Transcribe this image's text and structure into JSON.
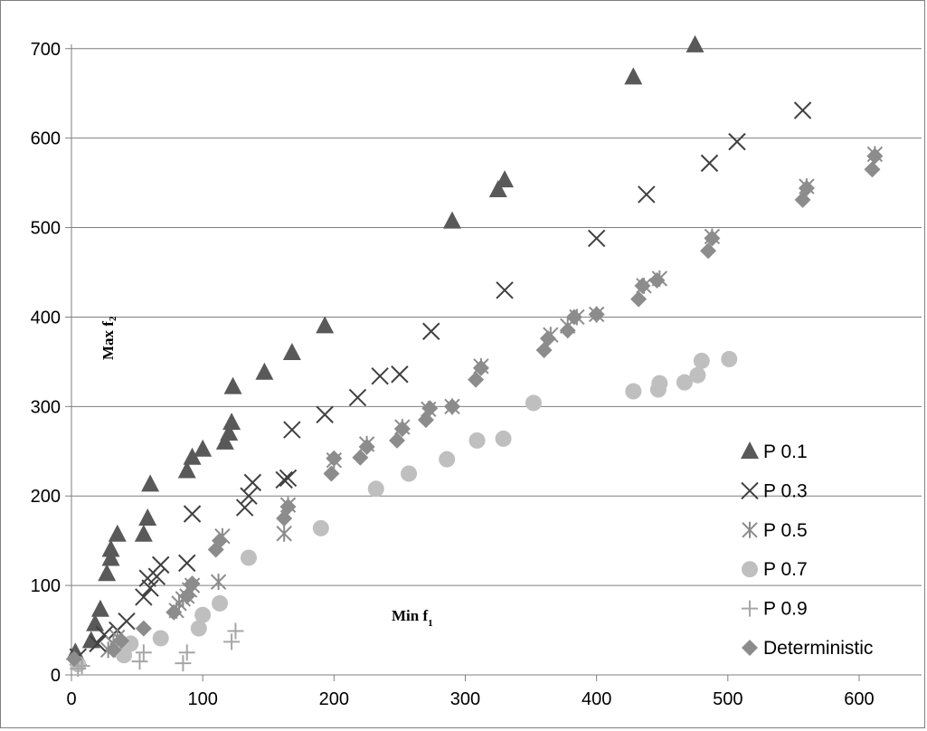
{
  "chart_data": {
    "type": "scatter",
    "xlabel": "Min f",
    "xlabel_sub": "1",
    "ylabel": "Max f",
    "ylabel_sub": "2",
    "xlim": [
      0,
      620
    ],
    "ylim": [
      0,
      720
    ],
    "xticks": [
      "0",
      "100",
      "200",
      "300",
      "400",
      "500",
      "600"
    ],
    "yticks": [
      "0",
      "100",
      "200",
      "300",
      "400",
      "500",
      "600",
      "700"
    ],
    "grid": "horizontal",
    "legend_position": "right",
    "series": [
      {
        "name": "P 0.1",
        "marker": "triangle",
        "color": "#595959",
        "points": [
          [
            3,
            25
          ],
          [
            15,
            38
          ],
          [
            18,
            57
          ],
          [
            22,
            73
          ],
          [
            27,
            113
          ],
          [
            30,
            130
          ],
          [
            30,
            140
          ],
          [
            35,
            157
          ],
          [
            55,
            157
          ],
          [
            58,
            175
          ],
          [
            60,
            213
          ],
          [
            88,
            228
          ],
          [
            92,
            243
          ],
          [
            100,
            252
          ],
          [
            117,
            260
          ],
          [
            120,
            270
          ],
          [
            122,
            282
          ],
          [
            123,
            322
          ],
          [
            147,
            338
          ],
          [
            168,
            360
          ],
          [
            193,
            390
          ],
          [
            290,
            507
          ],
          [
            325,
            542
          ],
          [
            330,
            553
          ],
          [
            428,
            668
          ],
          [
            475,
            704
          ]
        ]
      },
      {
        "name": "P 0.3",
        "marker": "x",
        "color": "#404040",
        "points": [
          [
            5,
            20
          ],
          [
            20,
            35
          ],
          [
            25,
            45
          ],
          [
            35,
            50
          ],
          [
            42,
            60
          ],
          [
            55,
            87
          ],
          [
            58,
            108
          ],
          [
            60,
            97
          ],
          [
            65,
            110
          ],
          [
            68,
            123
          ],
          [
            88,
            125
          ],
          [
            92,
            180
          ],
          [
            132,
            187
          ],
          [
            135,
            200
          ],
          [
            138,
            215
          ],
          [
            162,
            218
          ],
          [
            165,
            220
          ],
          [
            168,
            274
          ],
          [
            193,
            291
          ],
          [
            218,
            310
          ],
          [
            235,
            334
          ],
          [
            250,
            336
          ],
          [
            274,
            384
          ],
          [
            330,
            430
          ],
          [
            400,
            488
          ],
          [
            438,
            537
          ],
          [
            486,
            572
          ],
          [
            507,
            596
          ],
          [
            557,
            631
          ]
        ]
      },
      {
        "name": "P 0.5",
        "marker": "asterisk",
        "color": "#8c8c8c",
        "points": [
          [
            28,
            28
          ],
          [
            32,
            35
          ],
          [
            35,
            42
          ],
          [
            80,
            72
          ],
          [
            82,
            80
          ],
          [
            85,
            85
          ],
          [
            88,
            88
          ],
          [
            90,
            95
          ],
          [
            92,
            100
          ],
          [
            112,
            104
          ],
          [
            115,
            155
          ],
          [
            162,
            158
          ],
          [
            165,
            190
          ],
          [
            200,
            240
          ],
          [
            225,
            258
          ],
          [
            252,
            277
          ],
          [
            272,
            297
          ],
          [
            290,
            300
          ],
          [
            312,
            345
          ],
          [
            365,
            380
          ],
          [
            378,
            390
          ],
          [
            385,
            400
          ],
          [
            400,
            403
          ],
          [
            436,
            435
          ],
          [
            448,
            443
          ],
          [
            488,
            490
          ],
          [
            560,
            546
          ],
          [
            612,
            582
          ]
        ]
      },
      {
        "name": "P 0.7",
        "marker": "circle",
        "color": "#bfbfbf",
        "points": [
          [
            5,
            12
          ],
          [
            40,
            22
          ],
          [
            45,
            35
          ],
          [
            68,
            41
          ],
          [
            97,
            52
          ],
          [
            100,
            67
          ],
          [
            113,
            80
          ],
          [
            135,
            131
          ],
          [
            190,
            164
          ],
          [
            232,
            208
          ],
          [
            257,
            225
          ],
          [
            286,
            241
          ],
          [
            309,
            262
          ],
          [
            329,
            264
          ],
          [
            352,
            304
          ],
          [
            428,
            317
          ],
          [
            447,
            319
          ],
          [
            448,
            326
          ],
          [
            467,
            327
          ],
          [
            477,
            335
          ],
          [
            480,
            351
          ],
          [
            501,
            353
          ]
        ]
      },
      {
        "name": "P 0.9",
        "marker": "plus",
        "color": "#a6a6a6",
        "points": [
          [
            5,
            7
          ],
          [
            8,
            10
          ],
          [
            52,
            15
          ],
          [
            55,
            25
          ],
          [
            85,
            13
          ],
          [
            88,
            25
          ],
          [
            122,
            37
          ],
          [
            125,
            49
          ]
        ]
      },
      {
        "name": "Deterministic",
        "marker": "diamond",
        "color": "#8c8c8c",
        "points": [
          [
            2,
            18
          ],
          [
            32,
            28
          ],
          [
            38,
            38
          ],
          [
            55,
            52
          ],
          [
            78,
            70
          ],
          [
            88,
            88
          ],
          [
            92,
            102
          ],
          [
            110,
            140
          ],
          [
            113,
            150
          ],
          [
            162,
            175
          ],
          [
            165,
            188
          ],
          [
            198,
            225
          ],
          [
            200,
            242
          ],
          [
            220,
            243
          ],
          [
            225,
            255
          ],
          [
            248,
            262
          ],
          [
            252,
            275
          ],
          [
            270,
            285
          ],
          [
            273,
            298
          ],
          [
            290,
            300
          ],
          [
            308,
            330
          ],
          [
            312,
            343
          ],
          [
            360,
            363
          ],
          [
            363,
            376
          ],
          [
            378,
            385
          ],
          [
            383,
            400
          ],
          [
            400,
            403
          ],
          [
            432,
            420
          ],
          [
            435,
            435
          ],
          [
            446,
            441
          ],
          [
            485,
            474
          ],
          [
            488,
            488
          ],
          [
            557,
            531
          ],
          [
            560,
            544
          ],
          [
            610,
            565
          ],
          [
            612,
            580
          ]
        ]
      }
    ]
  }
}
